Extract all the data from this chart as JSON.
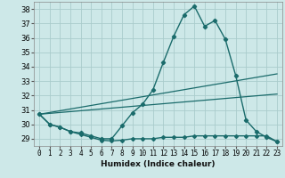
{
  "xlabel": "Humidex (Indice chaleur)",
  "bg_color": "#cde8e8",
  "grid_color": "#aacccc",
  "line_color": "#1a6b6b",
  "xlim": [
    -0.5,
    23.5
  ],
  "ylim": [
    28.5,
    38.5
  ],
  "yticks": [
    29,
    30,
    31,
    32,
    33,
    34,
    35,
    36,
    37,
    38
  ],
  "xtick_labels": [
    "0",
    "1",
    "2",
    "3",
    "4",
    "5",
    "6",
    "7",
    "8",
    "9",
    "10",
    "11",
    "12",
    "13",
    "14",
    "15",
    "16",
    "17",
    "18",
    "19",
    "20",
    "21",
    "22",
    "23"
  ],
  "line1_x": [
    0,
    1,
    2,
    3,
    4,
    5,
    6,
    7,
    8,
    9,
    10,
    11,
    12,
    13,
    14,
    15,
    16,
    17,
    18,
    19,
    20,
    21,
    22,
    23
  ],
  "line1_y": [
    30.7,
    30.0,
    29.8,
    29.5,
    29.4,
    29.2,
    29.0,
    29.0,
    29.9,
    30.8,
    31.4,
    32.4,
    34.3,
    36.1,
    37.6,
    38.2,
    36.8,
    37.2,
    35.9,
    33.4,
    30.3,
    29.5,
    29.1,
    28.8
  ],
  "line2_x": [
    0,
    1,
    2,
    3,
    4,
    5,
    6,
    7,
    8,
    9,
    10,
    11,
    12,
    13,
    14,
    15,
    16,
    17,
    18,
    19,
    20,
    21,
    22,
    23
  ],
  "line2_y": [
    30.7,
    30.0,
    29.8,
    29.5,
    29.3,
    29.1,
    28.9,
    28.85,
    28.9,
    29.0,
    29.0,
    29.0,
    29.1,
    29.1,
    29.1,
    29.2,
    29.2,
    29.2,
    29.2,
    29.2,
    29.2,
    29.2,
    29.2,
    28.8
  ],
  "line3_x": [
    0,
    23
  ],
  "line3_y": [
    30.7,
    33.5
  ],
  "line4_x": [
    0,
    23
  ],
  "line4_y": [
    30.7,
    32.1
  ]
}
